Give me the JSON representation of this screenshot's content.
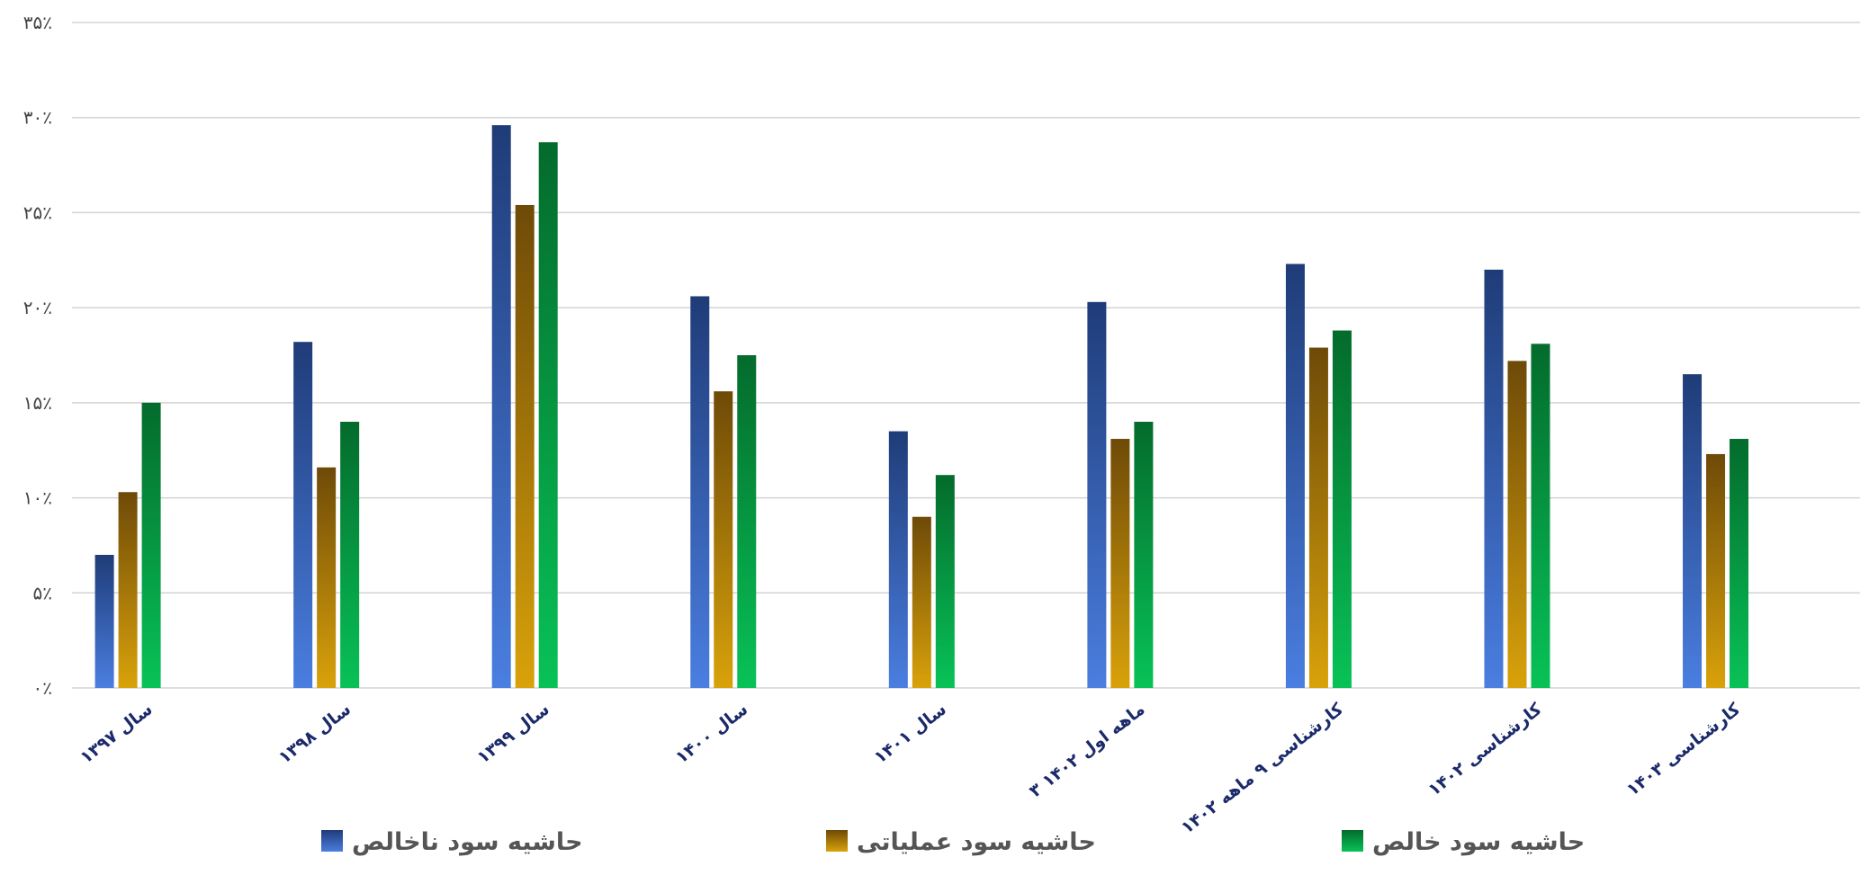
{
  "colors": {
    "gross": [
      "#1f3c78",
      "#4a7ee0"
    ],
    "operating": [
      "#6e4a08",
      "#d9a20a"
    ],
    "net": [
      "#046b2c",
      "#08c257"
    ],
    "grid": "#d3d3d3",
    "axis_text": "#444444",
    "category_text": "#1b2a6b",
    "legend_text": "#555555"
  },
  "chart_data": {
    "type": "bar",
    "categories": [
      "سال ۱۳۹۷",
      "سال ۱۳۹۸",
      "سال ۱۳۹۹",
      "سال ۱۴۰۰",
      "سال ۱۴۰۱",
      "۳ ماهه اول ۱۴۰۲",
      "کارشناسی ۹ ماهه ۱۴۰۲",
      "کارشناسی ۱۴۰۲",
      "کارشناسی ۱۴۰۳"
    ],
    "series": [
      {
        "name": "حاشیه سود ناخالص",
        "color_key": "gross",
        "values": [
          7,
          18.2,
          29.6,
          20.6,
          13.5,
          20.3,
          22.3,
          22,
          16.5
        ]
      },
      {
        "name": "حاشیه سود عملیاتی",
        "color_key": "operating",
        "values": [
          10.3,
          11.6,
          25.4,
          15.6,
          9,
          13.1,
          17.9,
          17.2,
          12.3
        ]
      },
      {
        "name": "حاشیه سود خالص",
        "color_key": "net",
        "values": [
          15,
          14,
          28.7,
          17.5,
          11.2,
          14,
          18.8,
          18.1,
          13.1
        ]
      }
    ],
    "y_ticks": [
      "۰٪",
      "۵٪",
      "۱۰٪",
      "۱۵٪",
      "۲۰٪",
      "۲۵٪",
      "۳۰٪",
      "۳۵٪"
    ],
    "ylim": [
      0,
      35
    ],
    "y_step": 5,
    "grid": true,
    "legend_position": "bottom"
  }
}
